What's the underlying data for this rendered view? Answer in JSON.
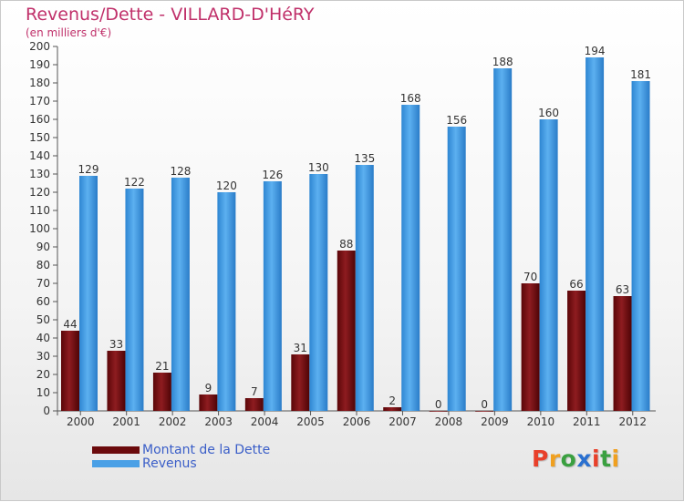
{
  "chart_data": {
    "type": "bar",
    "title": "Revenus/Dette - VILLARD-D'HéRY",
    "subtitle": "(en milliers d'€)",
    "categories": [
      "2000",
      "2001",
      "2002",
      "2003",
      "2004",
      "2005",
      "2006",
      "2007",
      "2008",
      "2009",
      "2010",
      "2011",
      "2012"
    ],
    "series": [
      {
        "name": "Montant de la Dette",
        "color": "#7a0e12",
        "values": [
          44,
          33,
          21,
          9,
          7,
          31,
          88,
          2,
          0,
          0,
          70,
          66,
          63
        ]
      },
      {
        "name": "Revenus",
        "color": "#4aa0e6",
        "values": [
          129,
          122,
          128,
          120,
          126,
          130,
          135,
          168,
          156,
          188,
          160,
          194,
          181
        ]
      }
    ],
    "ylim": [
      0,
      200
    ],
    "ytick_step": 10,
    "grid": false,
    "legend": "bottom-left"
  },
  "legend": {
    "debt_label": "Montant de la Dette",
    "revenue_label": "Revenus",
    "debt_color": "#6b0a0c",
    "revenue_color": "#4aa0e6"
  },
  "logo": {
    "letters": [
      "P",
      "r",
      "o",
      "x",
      "i",
      "t",
      "i"
    ],
    "colors": [
      "#e8402a",
      "#f0a020",
      "#3aa040",
      "#2a70d0",
      "#e8402a",
      "#3aa040",
      "#f0a020"
    ]
  }
}
